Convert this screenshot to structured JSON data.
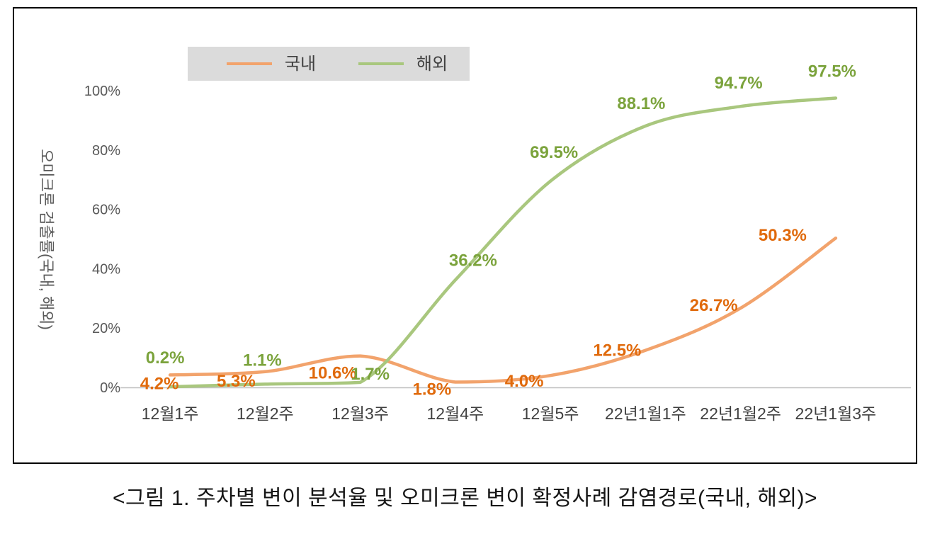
{
  "caption": "<그림 1. 주차별 변이 분석율 및 오미크론 변이 확정사례 감염경로(국내, 해외)>",
  "chart_data": {
    "type": "line",
    "title": "",
    "xlabel": "",
    "ylabel": "오미크론 검출률(국내, 해외)",
    "categories": [
      "12월1주",
      "12월2주",
      "12월3주",
      "12월4주",
      "12월5주",
      "22년1월1주",
      "22년1월2주",
      "22년1월3주"
    ],
    "series": [
      {
        "id": "domestic",
        "name": "국내",
        "line_color": "#F2A36C",
        "label_color": "#E06A0C",
        "values": [
          4.2,
          5.3,
          10.6,
          1.8,
          4.0,
          12.5,
          26.7,
          50.3
        ],
        "labels": [
          "4.2%",
          "5.3%",
          "10.6%",
          "1.8%",
          "4.0%",
          "12.5%",
          "26.7%",
          "50.3%"
        ],
        "label_offsets": [
          [
            -15,
            12
          ],
          [
            -41,
            13
          ],
          [
            -39,
            24
          ],
          [
            -33,
            10
          ],
          [
            -37,
            8
          ],
          [
            -40,
            0
          ],
          [
            -38,
            -4
          ],
          [
            -75,
            -4
          ]
        ]
      },
      {
        "id": "overseas",
        "name": "해외",
        "line_color": "#A9C77E",
        "label_color": "#7BA33C",
        "values": [
          0.2,
          1.1,
          1.7,
          36.2,
          69.5,
          88.1,
          94.7,
          97.5
        ],
        "labels": [
          "0.2%",
          "1.1%",
          "1.7%",
          "36.2%",
          "69.5%",
          "88.1%",
          "94.7%",
          "97.5%"
        ],
        "label_offsets": [
          [
            -7,
            -41
          ],
          [
            -4,
            -34
          ],
          [
            14,
            -12
          ],
          [
            25,
            -28
          ],
          [
            5,
            -41
          ],
          [
            -6,
            -32
          ],
          [
            -3,
            -33
          ],
          [
            -5,
            -38
          ]
        ]
      }
    ],
    "ylim": [
      0,
      100
    ],
    "yticks": [
      0,
      20,
      40,
      60,
      80,
      100
    ],
    "ytick_labels": [
      "0%",
      "20%",
      "40%",
      "60%",
      "80%",
      "100%"
    ],
    "grid": false,
    "legend_position": "top-inside",
    "legend_bg": "#DBDBDB",
    "legend_text_color": "#404040",
    "axis_line_color": "#BFBFBF",
    "tick_label_color": "#595959",
    "x_label_color": "#404040"
  }
}
